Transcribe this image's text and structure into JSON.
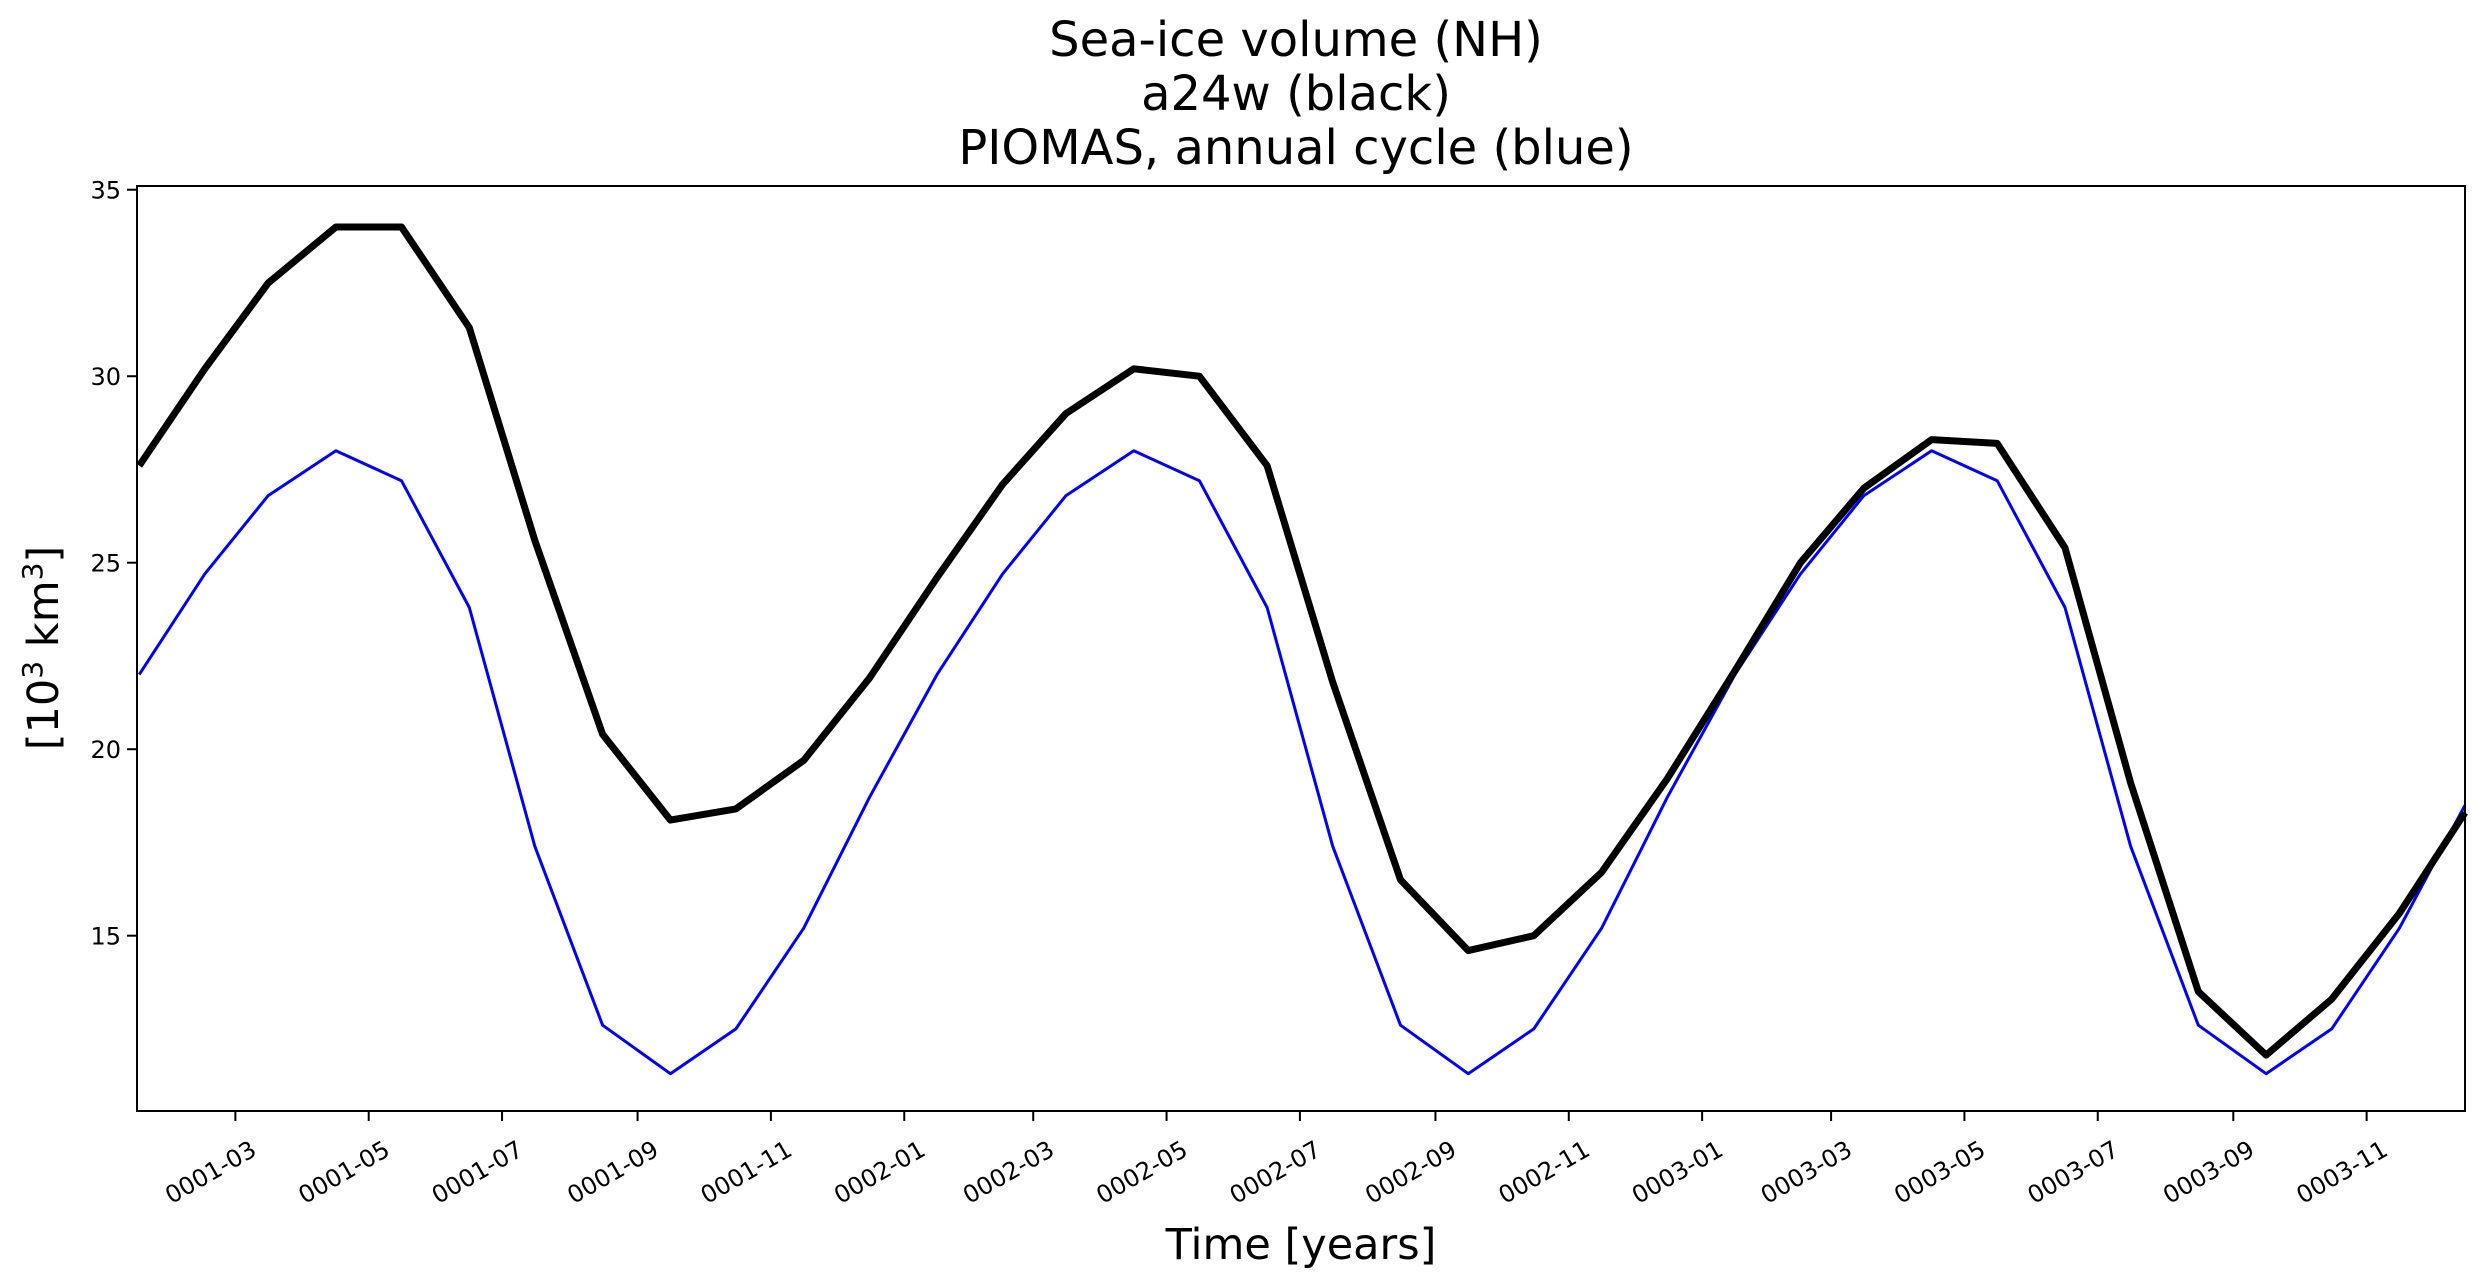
{
  "chart_data": {
    "type": "line",
    "title": [
      "Sea-ice volume (NH)",
      "a24w (black)",
      "PIOMAS, annual cycle (blue)"
    ],
    "xlabel": "Time [years]",
    "ylabel": {
      "base": "[10",
      "sup1": "3",
      "mid": " km",
      "sup2": "3",
      "end": "]"
    },
    "ylim": [
      10.3,
      35.1
    ],
    "yticks": [
      15,
      20,
      25,
      30,
      35
    ],
    "xlim": [
      "0001-01-15",
      "0003-12-16"
    ],
    "xtick_labels": [
      "0001-03",
      "0001-05",
      "0001-07",
      "0001-09",
      "0001-11",
      "0002-01",
      "0002-03",
      "0002-05",
      "0002-07",
      "0002-09",
      "0002-11",
      "0003-01",
      "0003-03",
      "0003-05",
      "0003-07",
      "0003-09",
      "0003-11"
    ],
    "grid": false,
    "legend": "none",
    "x": [
      "0001-01-16",
      "0001-02-15",
      "0001-03-16",
      "0001-04-16",
      "0001-05-16",
      "0001-06-16",
      "0001-07-16",
      "0001-08-16",
      "0001-09-16",
      "0001-10-16",
      "0001-11-16",
      "0001-12-16",
      "0002-01-16",
      "0002-02-15",
      "0002-03-16",
      "0002-04-16",
      "0002-05-16",
      "0002-06-16",
      "0002-07-16",
      "0002-08-16",
      "0002-09-16",
      "0002-10-16",
      "0002-11-16",
      "0002-12-16",
      "0003-01-16",
      "0003-02-15",
      "0003-03-16",
      "0003-04-16",
      "0003-05-16",
      "0003-06-16",
      "0003-07-16",
      "0003-08-16",
      "0003-09-16",
      "0003-10-16",
      "0003-11-16",
      "0003-12-16"
    ],
    "series": [
      {
        "color": "#000000",
        "values": [
          27.6,
          30.2,
          32.5,
          34.0,
          34.0,
          31.3,
          25.6,
          20.4,
          18.1,
          18.4,
          19.7,
          21.9,
          24.6,
          27.1,
          29.0,
          30.2,
          30.0,
          27.6,
          21.8,
          16.5,
          14.6,
          15.0,
          16.7,
          19.2,
          22.1,
          25.0,
          27.0,
          28.3,
          28.2,
          25.4,
          19.1,
          13.5,
          11.8,
          13.3,
          15.6,
          18.3
        ]
      },
      {
        "color": "#0000ff",
        "values": [
          22.0,
          24.7,
          26.8,
          28.0,
          27.2,
          23.8,
          17.4,
          12.6,
          11.3,
          12.5,
          15.2,
          18.7,
          22.0,
          24.7,
          26.8,
          28.0,
          27.2,
          23.8,
          17.4,
          12.6,
          11.3,
          12.5,
          15.2,
          18.7,
          22.0,
          24.7,
          26.8,
          28.0,
          27.2,
          23.8,
          17.4,
          12.6,
          11.3,
          12.5,
          15.2,
          18.5
        ]
      }
    ]
  }
}
